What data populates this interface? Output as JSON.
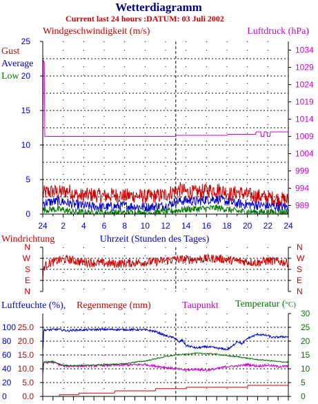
{
  "header": {
    "title": "Wetterdiagramm",
    "subtitle": "Current last 24 hours :DATUM: 03 Juli 2002"
  },
  "colors": {
    "title": "#000080",
    "red": "#cc0000",
    "blue": "#0000cc",
    "green": "#007700",
    "magenta": "#cc00cc",
    "grid": "#000000",
    "black": "#000000"
  },
  "chart_data": [
    {
      "type": "line",
      "id": "wind",
      "left_label": "Windgeschwindigkeit (m/s)",
      "right_label": "Luftdruck (hPa)",
      "legend": [
        "Gust",
        "Average",
        "Low"
      ],
      "xlabel": "Uhrzeit (Stunden des Tages)",
      "x_ticks": [
        "24",
        "2",
        "4",
        "6",
        "8",
        "10",
        "12",
        "14",
        "16",
        "18",
        "20",
        "22",
        "24"
      ],
      "y_left_ticks": [
        "0",
        "5",
        "10",
        "15",
        "20",
        "25"
      ],
      "y_left_range": [
        0,
        25
      ],
      "y_right_ticks": [
        "989",
        "994",
        "999",
        "1004",
        "1009",
        "1014",
        "1019",
        "1024",
        "1029",
        "1034"
      ],
      "y_right_range": [
        986.5,
        1036.5
      ],
      "midnight_marker_hour": 13,
      "series": [
        {
          "name": "Gust",
          "color": "#cc0000",
          "points": [
            [
              0.0,
              3.0
            ],
            [
              0.5,
              3.2
            ],
            [
              1.0,
              3.3
            ],
            [
              1.5,
              3.1
            ],
            [
              2.0,
              3.2
            ],
            [
              2.5,
              3.4
            ],
            [
              3.0,
              3.0
            ],
            [
              3.5,
              2.6
            ],
            [
              4.0,
              2.7
            ],
            [
              5.0,
              2.8
            ],
            [
              6.0,
              2.6
            ],
            [
              7.0,
              2.8
            ],
            [
              8.0,
              2.6
            ],
            [
              9.0,
              2.7
            ],
            [
              10.0,
              2.5
            ],
            [
              11.0,
              2.6
            ],
            [
              12.0,
              2.8
            ],
            [
              13.0,
              3.4
            ],
            [
              13.5,
              3.6
            ],
            [
              14.0,
              3.2
            ],
            [
              15.0,
              3.1
            ],
            [
              16.0,
              3.4
            ],
            [
              17.0,
              3.6
            ],
            [
              18.0,
              3.2
            ],
            [
              18.5,
              2.8
            ],
            [
              19.0,
              3.2
            ],
            [
              20.0,
              2.8
            ],
            [
              21.0,
              2.6
            ],
            [
              22.0,
              2.4
            ],
            [
              23.0,
              2.2
            ],
            [
              24.0,
              2.0
            ]
          ],
          "noise": 1.1
        },
        {
          "name": "Average",
          "color": "#0000cc",
          "points": [
            [
              0.0,
              1.6
            ],
            [
              1.0,
              1.8
            ],
            [
              2.0,
              1.8
            ],
            [
              3.0,
              1.4
            ],
            [
              4.0,
              1.2
            ],
            [
              6.0,
              1.0
            ],
            [
              8.0,
              1.2
            ],
            [
              10.0,
              1.0
            ],
            [
              12.0,
              1.2
            ],
            [
              13.0,
              1.8
            ],
            [
              14.0,
              2.0
            ],
            [
              15.0,
              1.8
            ],
            [
              16.0,
              2.1
            ],
            [
              17.0,
              2.2
            ],
            [
              18.0,
              1.8
            ],
            [
              19.0,
              1.5
            ],
            [
              20.0,
              1.4
            ],
            [
              22.0,
              1.2
            ],
            [
              24.0,
              1.0
            ]
          ],
          "noise": 0.7
        },
        {
          "name": "Low",
          "color": "#007700",
          "points": [
            [
              0.0,
              0.6
            ],
            [
              1.0,
              0.7
            ],
            [
              2.0,
              0.6
            ],
            [
              3.0,
              0.3
            ],
            [
              5.0,
              0.2
            ],
            [
              8.0,
              0.2
            ],
            [
              10.0,
              0.2
            ],
            [
              12.0,
              0.3
            ],
            [
              13.0,
              0.5
            ],
            [
              14.0,
              0.7
            ],
            [
              16.0,
              0.8
            ],
            [
              17.0,
              0.9
            ],
            [
              18.0,
              0.7
            ],
            [
              19.0,
              0.4
            ],
            [
              21.0,
              0.3
            ],
            [
              24.0,
              0.3
            ]
          ],
          "noise": 0.5
        },
        {
          "name": "Luftdruck",
          "color": "#cc00cc",
          "points": [
            [
              0.0,
              1004.0
            ],
            [
              0.05,
              1031.0
            ],
            [
              0.15,
              1030.5
            ],
            [
              0.2,
              1009.0
            ],
            [
              13.0,
              1009.0
            ],
            [
              13.05,
              1009.3
            ],
            [
              18.0,
              1009.3
            ],
            [
              18.1,
              1009.6
            ],
            [
              20.8,
              1009.6
            ],
            [
              20.85,
              1010.3
            ],
            [
              21.3,
              1010.3
            ],
            [
              21.35,
              1009.0
            ],
            [
              21.6,
              1009.0
            ],
            [
              21.65,
              1010.3
            ],
            [
              21.9,
              1010.3
            ],
            [
              21.95,
              1009.0
            ],
            [
              22.2,
              1009.0
            ],
            [
              22.25,
              1010.3
            ],
            [
              24.0,
              1010.3
            ]
          ],
          "noise": 0
        }
      ]
    },
    {
      "type": "line",
      "id": "direction",
      "left_label": "Windrichtung",
      "y_ticks": [
        "N",
        "W",
        "S",
        "E",
        "N"
      ],
      "y_range": [
        0,
        4
      ],
      "series": [
        {
          "name": "Windrichtung",
          "color": "#cc0000",
          "points": [
            [
              0.0,
              1.0
            ],
            [
              0.1,
              2.2
            ],
            [
              0.5,
              2.5
            ],
            [
              1.5,
              2.8
            ],
            [
              2.5,
              2.9
            ],
            [
              3.5,
              2.7
            ],
            [
              5.0,
              2.6
            ],
            [
              7.0,
              2.5
            ],
            [
              9.0,
              2.6
            ],
            [
              11.0,
              2.7
            ],
            [
              12.0,
              2.8
            ],
            [
              13.0,
              2.9
            ],
            [
              15.0,
              2.9
            ],
            [
              17.0,
              3.0
            ],
            [
              18.5,
              2.8
            ],
            [
              20.0,
              2.7
            ],
            [
              21.0,
              2.6
            ],
            [
              22.0,
              2.8
            ],
            [
              23.0,
              2.7
            ],
            [
              24.0,
              2.6
            ]
          ],
          "noise": 0.4
        }
      ]
    },
    {
      "type": "line",
      "id": "humidity",
      "left_label": "Luftfeuchte (%),",
      "left_label_2": "Regenmenge (mm)",
      "dewpoint_label": "Taupunkt",
      "temperature_label": "Temperatur (",
      "temperature_unit": "°C)",
      "y_left_ticks": [
        "0",
        "20",
        "40",
        "60",
        "80",
        "100"
      ],
      "y_left_range": [
        0,
        120
      ],
      "y_rain_ticks": [
        "0.0",
        "5.0",
        "10.0",
        "15.0",
        "20.0",
        "25.0"
      ],
      "y_rain_range": [
        0,
        30
      ],
      "y_right_ticks": [
        "0",
        "5",
        "10",
        "15",
        "20",
        "25",
        "30"
      ],
      "y_right_range": [
        0,
        30
      ],
      "series": [
        {
          "name": "Luftfeuchte",
          "color": "#0000cc",
          "points": [
            [
              0.0,
              65.0
            ],
            [
              0.1,
              96.0
            ],
            [
              1.5,
              97.0
            ],
            [
              2.5,
              95.0
            ],
            [
              3.0,
              96.0
            ],
            [
              6.0,
              97.0
            ],
            [
              10.0,
              96.5
            ],
            [
              11.0,
              94.0
            ],
            [
              12.0,
              88.0
            ],
            [
              12.5,
              86.0
            ],
            [
              13.0,
              84.0
            ],
            [
              13.3,
              78.0
            ],
            [
              13.6,
              82.0
            ],
            [
              14.0,
              74.0
            ],
            [
              15.0,
              70.0
            ],
            [
              16.0,
              72.0
            ],
            [
              17.0,
              70.0
            ],
            [
              18.0,
              68.0
            ],
            [
              18.5,
              72.0
            ],
            [
              19.0,
              80.0
            ],
            [
              19.5,
              76.0
            ],
            [
              20.0,
              84.0
            ],
            [
              21.0,
              90.0
            ],
            [
              22.0,
              88.0
            ],
            [
              22.5,
              85.0
            ],
            [
              23.0,
              86.0
            ],
            [
              24.0,
              86.5
            ]
          ],
          "noise": 1.5
        },
        {
          "name": "Regenmenge",
          "color": "#cc0000",
          "points": [
            [
              0.0,
              0.0
            ],
            [
              1.6,
              0.0
            ],
            [
              1.65,
              0.6
            ],
            [
              3.5,
              0.6
            ],
            [
              3.55,
              1.2
            ],
            [
              7.0,
              1.2
            ],
            [
              7.05,
              2.0
            ],
            [
              11.0,
              2.0
            ],
            [
              11.05,
              2.8
            ],
            [
              14.0,
              2.8
            ],
            [
              14.05,
              3.3
            ],
            [
              20.0,
              3.3
            ],
            [
              20.05,
              4.0
            ],
            [
              24.0,
              4.0
            ]
          ],
          "noise": 0
        },
        {
          "name": "Taupunkt",
          "color": "#cc00cc",
          "points": [
            [
              0.0,
              8.0
            ],
            [
              0.1,
              12.2
            ],
            [
              1.0,
              12.4
            ],
            [
              2.0,
              11.0
            ],
            [
              4.0,
              11.0
            ],
            [
              6.0,
              11.2
            ],
            [
              8.0,
              11.4
            ],
            [
              10.0,
              11.5
            ],
            [
              11.0,
              11.0
            ],
            [
              12.0,
              10.5
            ],
            [
              13.0,
              10.0
            ],
            [
              14.0,
              9.5
            ],
            [
              15.0,
              9.8
            ],
            [
              16.0,
              9.5
            ],
            [
              17.0,
              10.0
            ],
            [
              18.0,
              10.8
            ],
            [
              19.0,
              11.0
            ],
            [
              20.0,
              11.5
            ],
            [
              21.0,
              11.0
            ],
            [
              22.0,
              11.3
            ],
            [
              23.0,
              10.8
            ],
            [
              24.0,
              11.0
            ]
          ],
          "noise": 0.4
        },
        {
          "name": "Temperatur",
          "color": "#007700",
          "points": [
            [
              0.0,
              9.0
            ],
            [
              0.1,
              12.4
            ],
            [
              1.0,
              12.6
            ],
            [
              2.0,
              11.2
            ],
            [
              4.0,
              11.2
            ],
            [
              6.0,
              11.5
            ],
            [
              8.0,
              11.8
            ],
            [
              9.0,
              12.4
            ],
            [
              10.0,
              12.8
            ],
            [
              11.0,
              13.6
            ],
            [
              12.0,
              14.4
            ],
            [
              13.0,
              15.0
            ],
            [
              14.0,
              15.3
            ],
            [
              15.0,
              15.6
            ],
            [
              16.0,
              15.5
            ],
            [
              17.0,
              15.3
            ],
            [
              18.0,
              14.7
            ],
            [
              19.0,
              14.4
            ],
            [
              20.0,
              13.8
            ],
            [
              21.0,
              13.3
            ],
            [
              22.0,
              13.0
            ],
            [
              23.0,
              12.6
            ],
            [
              24.0,
              12.4
            ]
          ],
          "noise": 0.2
        }
      ]
    }
  ]
}
